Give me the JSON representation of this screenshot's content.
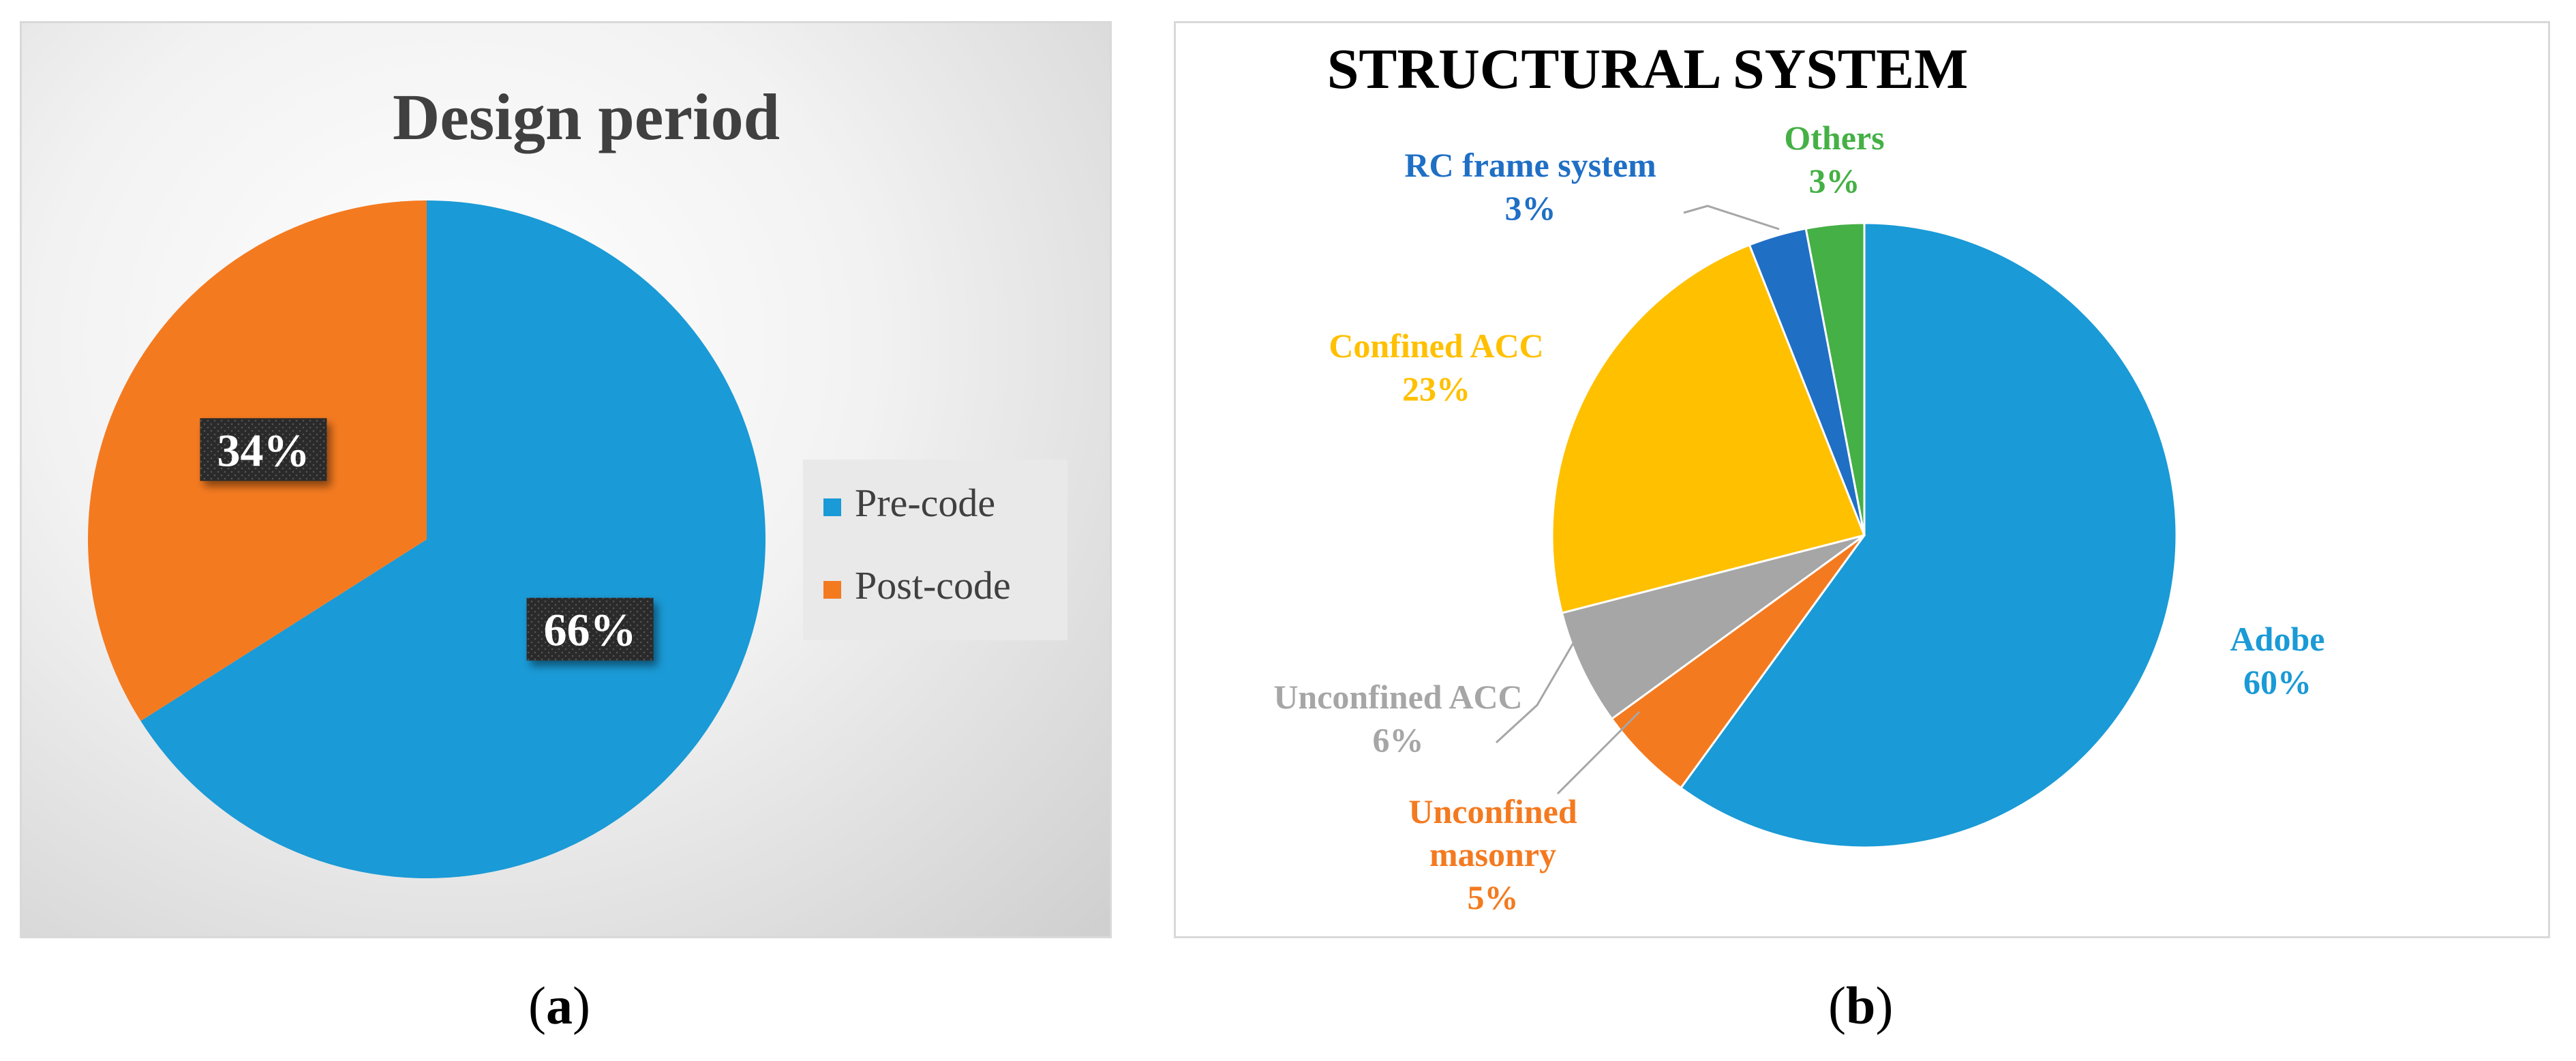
{
  "chart_data": [
    {
      "type": "pie",
      "title": "Design period",
      "categories": [
        "Pre-code",
        "Post-code"
      ],
      "values": [
        66,
        34
      ],
      "value_labels": [
        "66%",
        "34%"
      ],
      "colors": [
        "#1a9ad6",
        "#f47a20"
      ],
      "legend": {
        "placement": "right",
        "entries": [
          "Pre-code",
          "Post-code"
        ]
      }
    },
    {
      "type": "pie",
      "title": "STRUCTURAL SYSTEM",
      "categories": [
        "Adobe",
        "Unconfined masonry",
        "Unconfined ACC",
        "Confined ACC",
        "RC frame system",
        "Others"
      ],
      "values": [
        60,
        5,
        6,
        23,
        3,
        3
      ],
      "value_labels": [
        "60%",
        "5%",
        "6%",
        "23%",
        "3%",
        "3%"
      ],
      "colors": [
        "#1a9ad6",
        "#f47a20",
        "#a6a6a6",
        "#ffc000",
        "#1f6fc5",
        "#45b045"
      ]
    }
  ],
  "captions": {
    "a_open": "(",
    "a_letter": "a",
    "a_close": ")",
    "b_open": "(",
    "b_letter": "b",
    "b_close": ")"
  }
}
